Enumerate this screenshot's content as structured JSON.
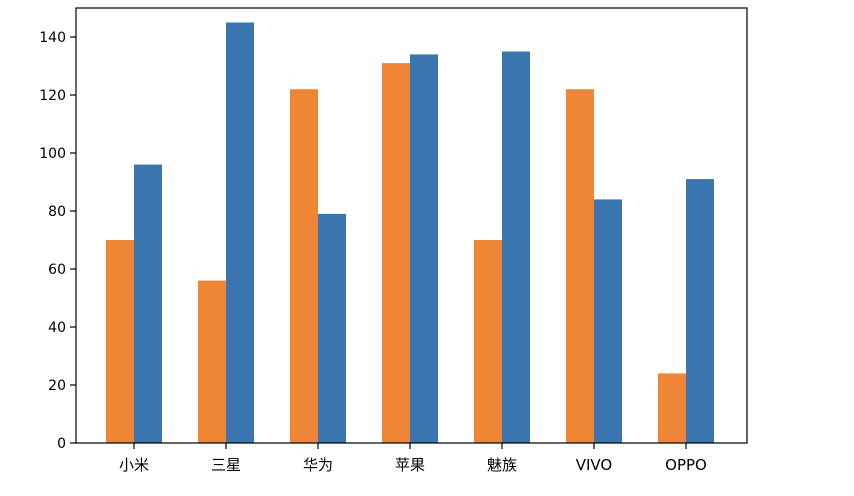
{
  "chart_data": {
    "type": "bar",
    "categories": [
      "小米",
      "三星",
      "华为",
      "苹果",
      "魅族",
      "VIVO",
      "OPPO"
    ],
    "series": [
      {
        "values": [
          70,
          56,
          122,
          131,
          70,
          122,
          24
        ],
        "color": "#ef8636"
      },
      {
        "values": [
          96,
          145,
          79,
          134,
          135,
          84,
          91
        ],
        "color": "#3b75af"
      }
    ],
    "title": "",
    "xlabel": "",
    "ylabel": "",
    "ylim": [
      0,
      150
    ],
    "yticks": [
      0,
      20,
      40,
      60,
      80,
      100,
      120,
      140
    ],
    "grid": false,
    "legend": "none"
  }
}
